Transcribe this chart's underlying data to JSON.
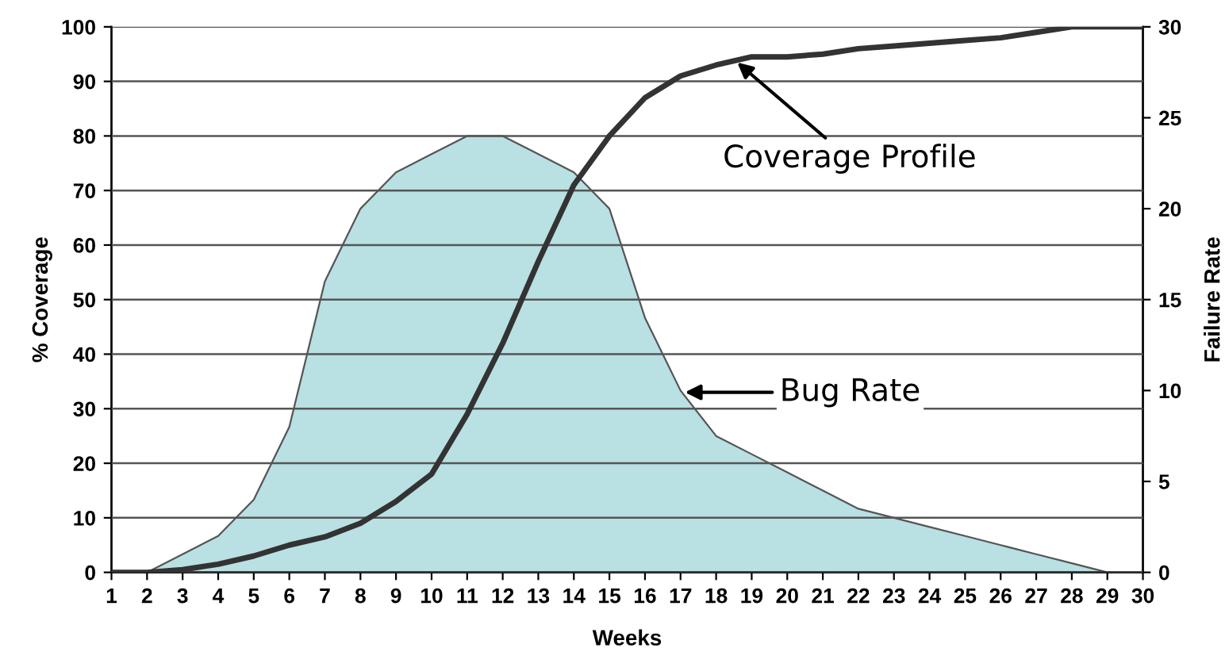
{
  "chart_data": {
    "type": "line",
    "xlabel": "Weeks",
    "ylabel": "% Coverage",
    "y2label": "Failure Rate",
    "x": [
      1,
      2,
      3,
      4,
      5,
      6,
      7,
      8,
      9,
      10,
      11,
      12,
      13,
      14,
      15,
      16,
      17,
      18,
      19,
      20,
      21,
      22,
      23,
      24,
      25,
      26,
      27,
      28,
      29,
      30
    ],
    "series": [
      {
        "type": "area",
        "axis": "y2",
        "color": "#b9e0e3",
        "values": [
          0,
          0,
          1,
          2,
          4,
          8,
          16,
          20,
          22,
          23,
          24,
          24,
          23,
          22,
          20,
          14,
          10,
          7.5,
          6.5,
          5.5,
          4.5,
          3.5,
          3,
          2.5,
          2,
          1.5,
          1,
          0.5,
          0,
          null
        ]
      },
      {
        "color": "#333333",
        "values": [
          0,
          0,
          0.5,
          1.5,
          3,
          5,
          6.5,
          9,
          13,
          18,
          29,
          42,
          57,
          71,
          80,
          87,
          91,
          93,
          94.5,
          94.5,
          95,
          96,
          96.5,
          97,
          97.5,
          98,
          99,
          100,
          100,
          100
        ]
      }
    ],
    "xlim": [
      1,
      30
    ],
    "xticks": [
      1,
      2,
      3,
      4,
      5,
      6,
      7,
      8,
      9,
      10,
      11,
      12,
      13,
      14,
      15,
      16,
      17,
      18,
      19,
      20,
      21,
      22,
      23,
      24,
      25,
      26,
      27,
      28,
      29,
      30
    ],
    "ylim": [
      0,
      100
    ],
    "yticks": [
      0,
      10,
      20,
      30,
      40,
      50,
      60,
      70,
      80,
      90,
      100
    ],
    "y2lim": [
      0,
      30
    ],
    "y2ticks": [
      0,
      5,
      10,
      15,
      20,
      25,
      30
    ],
    "grid": "y",
    "annotations": [
      {
        "text": "Coverage Profile",
        "x": 18.5,
        "y": 94
      },
      {
        "text": "Bug Rate",
        "x": 17,
        "y": 33
      }
    ]
  }
}
